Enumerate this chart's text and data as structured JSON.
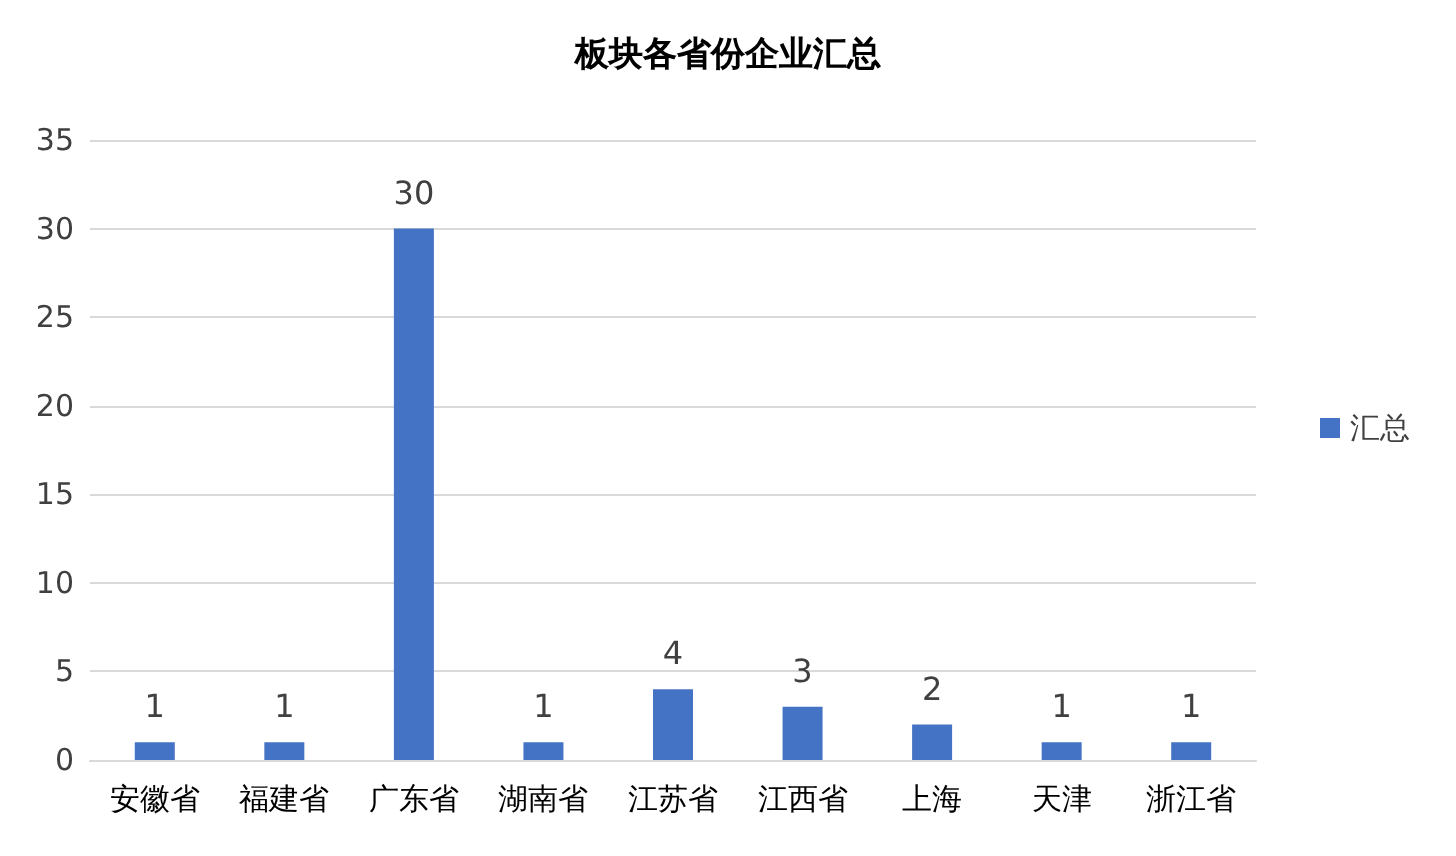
{
  "chart_data": {
    "type": "bar",
    "title": "板块各省份企业汇总",
    "categories": [
      "安徽省",
      "福建省",
      "广东省",
      "湖南省",
      "江苏省",
      "江西省",
      "上海",
      "天津",
      "浙江省"
    ],
    "series": [
      {
        "name": "汇总",
        "color": "#4472c4",
        "values": [
          1,
          1,
          30,
          1,
          4,
          3,
          2,
          1,
          1
        ]
      }
    ],
    "ylim": [
      0,
      35
    ],
    "yticks": [
      0,
      5,
      10,
      15,
      20,
      25,
      30,
      35
    ],
    "grid": "y",
    "legend": "right",
    "data_labels": true
  }
}
